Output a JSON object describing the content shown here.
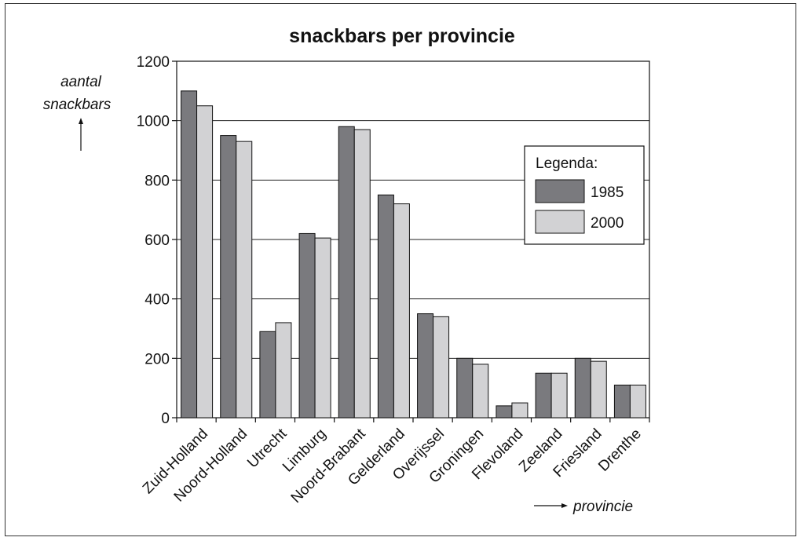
{
  "chart_data": {
    "type": "bar",
    "title": "snackbars per provincie",
    "ylabel_line1": "aantal",
    "ylabel_line2": "snackbars",
    "xlabel": "provincie",
    "ylim": [
      0,
      1200
    ],
    "yticks": [
      0,
      200,
      400,
      600,
      800,
      1000,
      1200
    ],
    "grid": true,
    "legend_title": "Legenda:",
    "legend_position": "right",
    "categories": [
      "Zuid-Holland",
      "Noord-Holland",
      "Utrecht",
      "Limburg",
      "Noord-Brabant",
      "Gelderland",
      "Overijssel",
      "Groningen",
      "Flevoland",
      "Zeeland",
      "Friesland",
      "Drenthe"
    ],
    "series": [
      {
        "name": "1985",
        "color": "#7a7a7e",
        "values": [
          1100,
          950,
          290,
          620,
          980,
          750,
          350,
          200,
          40,
          150,
          200,
          110
        ]
      },
      {
        "name": "2000",
        "color": "#d2d2d4",
        "values": [
          1050,
          930,
          320,
          605,
          970,
          720,
          340,
          180,
          50,
          150,
          190,
          110
        ]
      }
    ]
  }
}
